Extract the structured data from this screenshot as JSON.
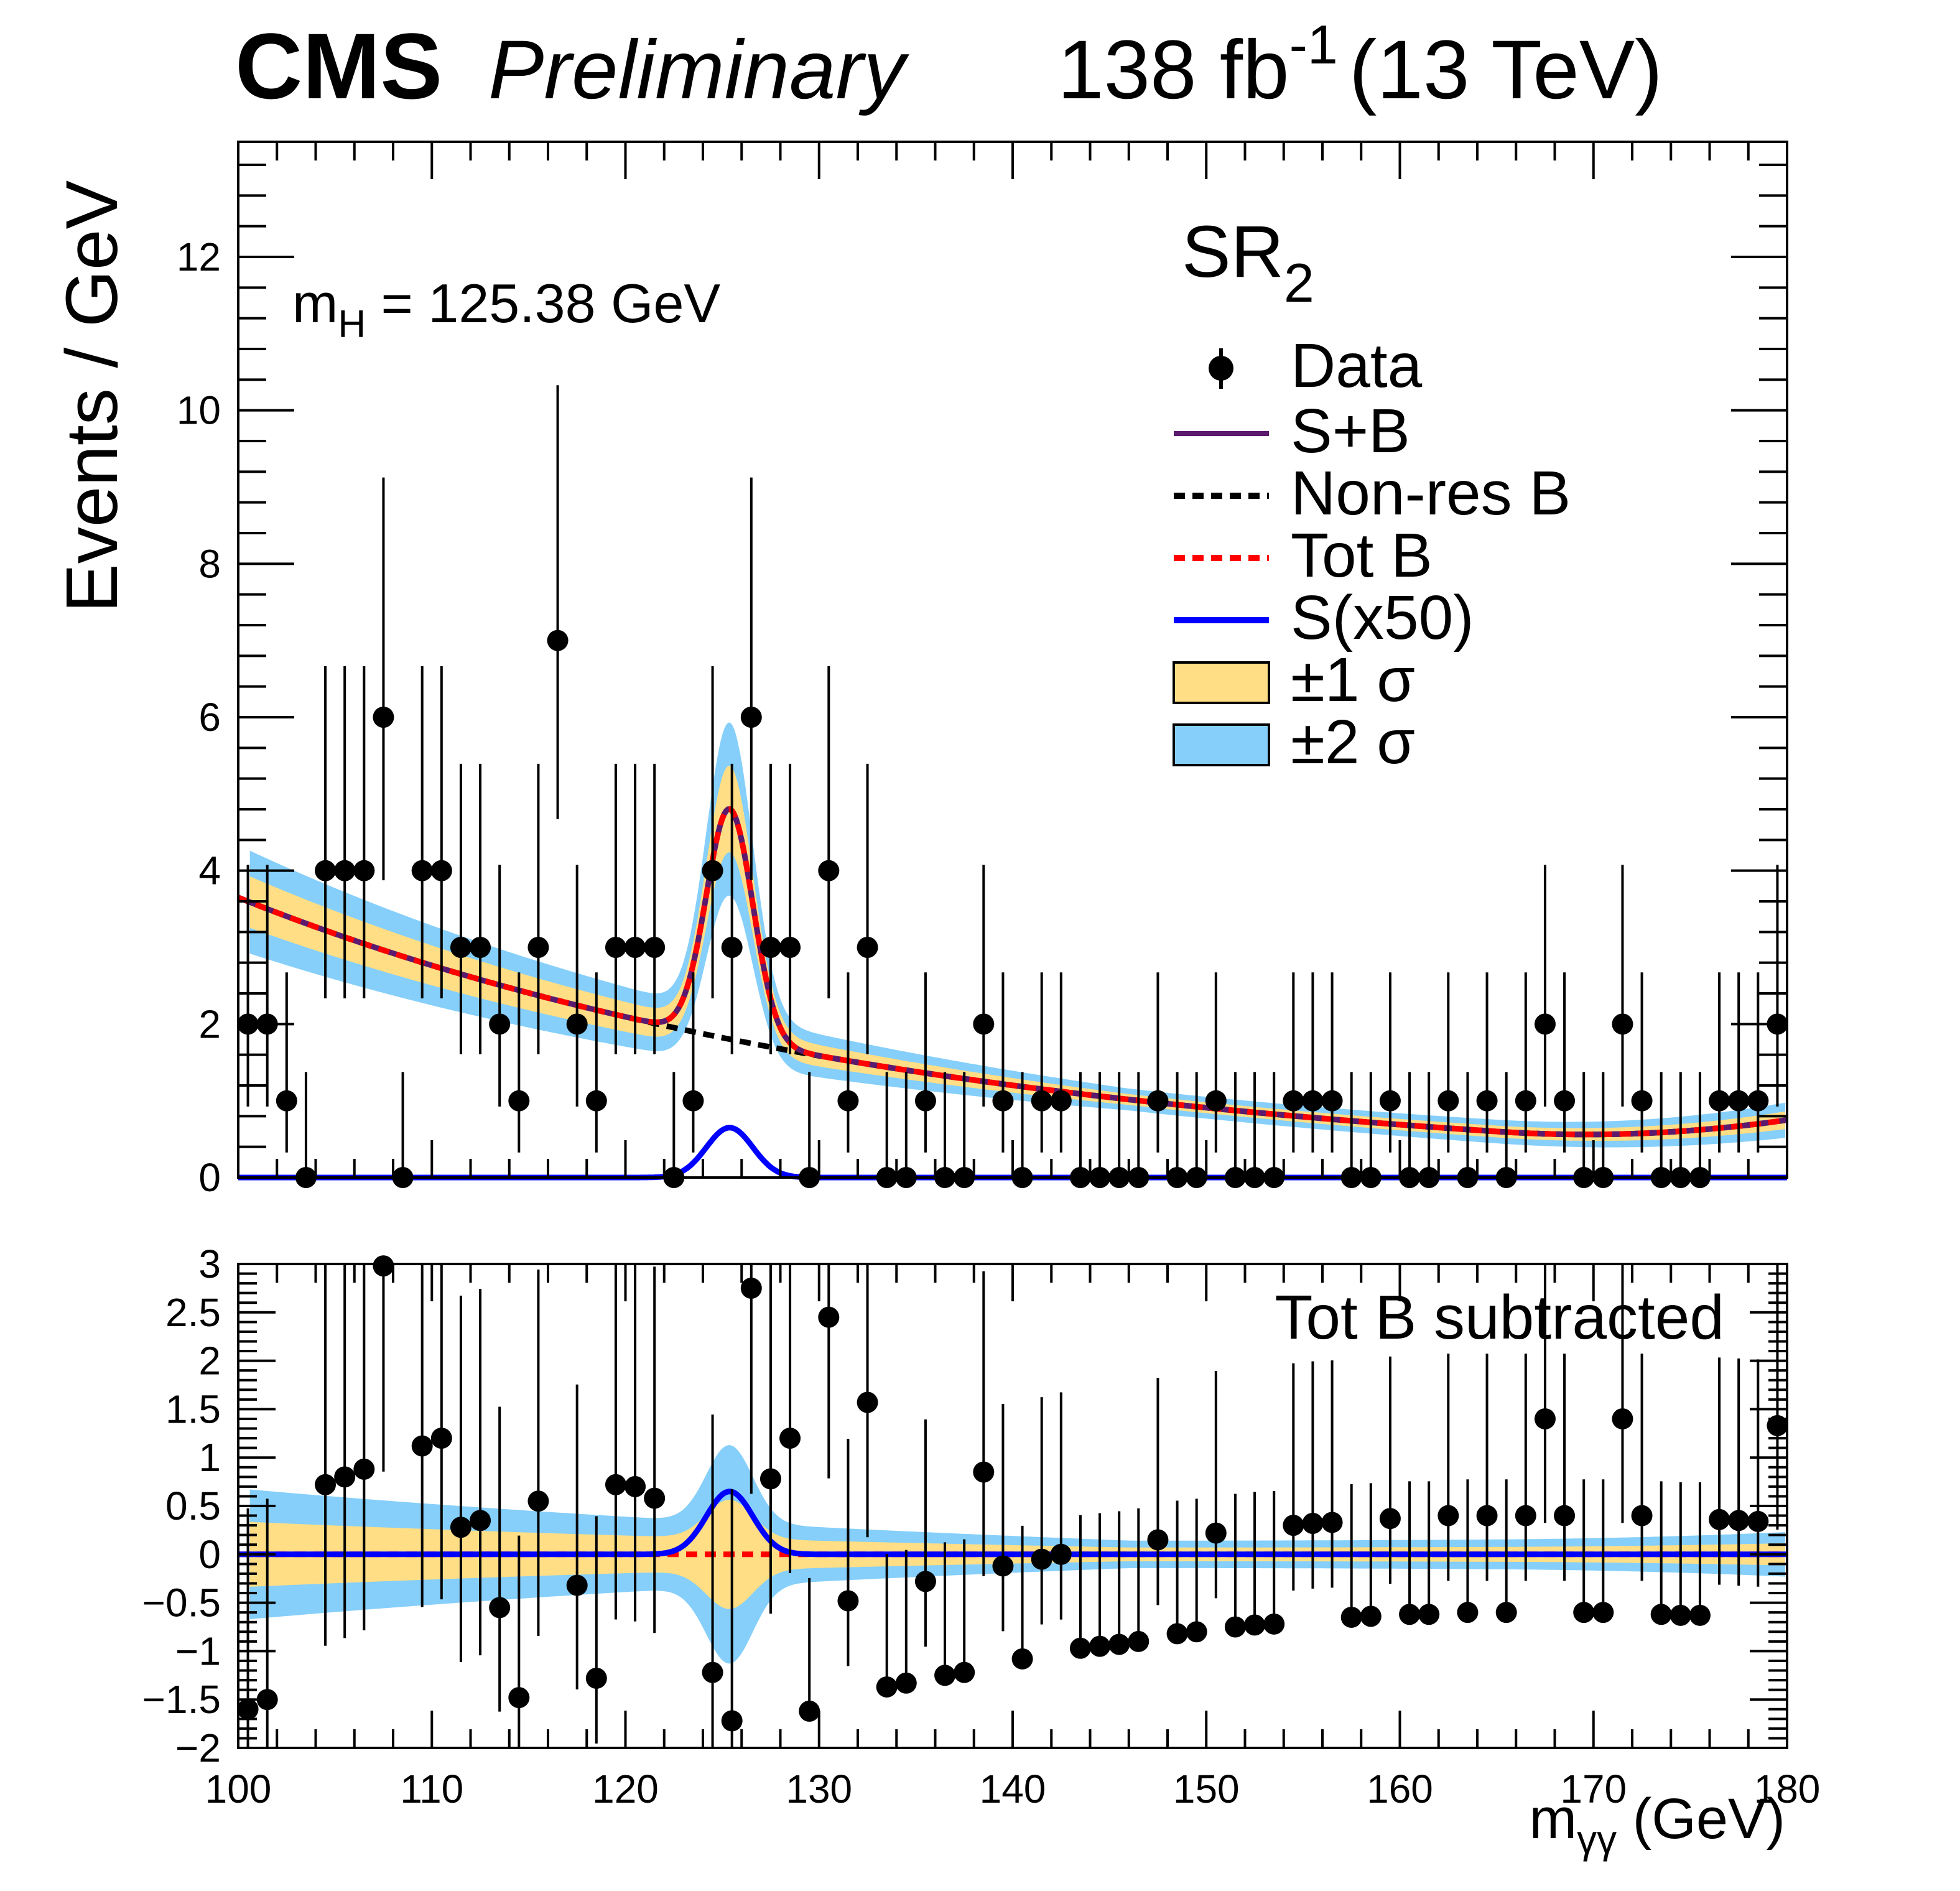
{
  "header": {
    "experiment": "CMS",
    "status": "Preliminary",
    "lumi_value": "138 fb",
    "lumi_exp": "-1",
    "energy": "(13 TeV)"
  },
  "annotations": {
    "mass_prefix": "m",
    "mass_sub": "H",
    "mass_suffix": " = 125.38 GeV",
    "region_main": "SR",
    "region_sub": "2",
    "ratio_label": "Tot B subtracted"
  },
  "axes": {
    "ylabel": "Events / GeV",
    "xlabel_prefix": "m",
    "xlabel_sub": "γγ",
    "xlabel_suffix": " (GeV)"
  },
  "legend": {
    "data": "Data",
    "sb": "S+B",
    "nonres": "Non-res B",
    "totb": "Tot B",
    "sig": "S(x50)",
    "one_sigma": "±1 σ",
    "two_sigma": "±2 σ"
  },
  "colors": {
    "one_sigma": "#ffde85",
    "two_sigma": "#85cffa",
    "sb": "#5c1a6e",
    "nonres": "#000000",
    "totb": "#ff0000",
    "signal": "#0000ff",
    "data": "#000000"
  },
  "chart_data": {
    "type": "scatter",
    "title": "SR2, mH = 125.38 GeV, 138 fb-1 (13 TeV)",
    "xlabel": "mγγ (GeV)",
    "ylabel": "Events / GeV",
    "xlim": [
      100,
      180
    ],
    "top_ylim": [
      0,
      13.5
    ],
    "ratio_ylim": [
      -2,
      3
    ],
    "x_ticks": [
      "100",
      "110",
      "120",
      "130",
      "140",
      "150",
      "160",
      "170",
      "180"
    ],
    "top_y_ticks": [
      "0",
      "2",
      "4",
      "6",
      "8",
      "10",
      "12"
    ],
    "ratio_y_ticks": [
      "−2",
      "−1.5",
      "−1",
      "−0.5",
      "0",
      "0.5",
      "1",
      "1.5",
      "2",
      "2.5",
      "3"
    ],
    "signal_model": {
      "mass": 125.38,
      "width": 1.2,
      "peak_tot": 3.0,
      "peak_plot": 0.65,
      "scale": "x50"
    },
    "background_model": {
      "at_100": 3.65,
      "at_165": 0.6,
      "at_180": 0.68
    },
    "data": [
      {
        "x": 100.5,
        "y": 2,
        "r": -1.6
      },
      {
        "x": 101.5,
        "y": 2,
        "r": -1.5
      },
      {
        "x": 102.5,
        "y": 1,
        "r": null
      },
      {
        "x": 103.5,
        "y": 0,
        "r": null
      },
      {
        "x": 104.5,
        "y": 4,
        "r": 0.72
      },
      {
        "x": 105.5,
        "y": 4,
        "r": 0.8
      },
      {
        "x": 106.5,
        "y": 4,
        "r": 0.88
      },
      {
        "x": 107.5,
        "y": 6,
        "r": 2.98
      },
      {
        "x": 108.5,
        "y": 0,
        "r": null
      },
      {
        "x": 109.5,
        "y": 4,
        "r": 1.12
      },
      {
        "x": 110.5,
        "y": 4,
        "r": 1.2
      },
      {
        "x": 111.5,
        "y": 3,
        "r": 0.28
      },
      {
        "x": 112.5,
        "y": 3,
        "r": 0.35
      },
      {
        "x": 113.5,
        "y": 2,
        "r": -0.55
      },
      {
        "x": 114.5,
        "y": 1,
        "r": -1.48
      },
      {
        "x": 115.5,
        "y": 3,
        "r": 0.55
      },
      {
        "x": 116.5,
        "y": 7,
        "r": null
      },
      {
        "x": 117.5,
        "y": 2,
        "r": -0.32
      },
      {
        "x": 118.5,
        "y": 1,
        "r": -1.28
      },
      {
        "x": 119.5,
        "y": 3,
        "r": 0.72
      },
      {
        "x": 120.5,
        "y": 3,
        "r": 0.7
      },
      {
        "x": 121.5,
        "y": 3,
        "r": 0.58
      },
      {
        "x": 122.5,
        "y": 0,
        "r": null
      },
      {
        "x": 123.5,
        "y": 1,
        "r": null
      },
      {
        "x": 124.5,
        "y": 4,
        "r": -1.22
      },
      {
        "x": 125.5,
        "y": 3,
        "r": -1.72
      },
      {
        "x": 126.5,
        "y": 6,
        "r": 2.75
      },
      {
        "x": 127.5,
        "y": 3,
        "r": 0.78
      },
      {
        "x": 128.5,
        "y": 3,
        "r": 1.2
      },
      {
        "x": 129.5,
        "y": 0,
        "r": -1.62
      },
      {
        "x": 130.5,
        "y": 4,
        "r": 2.45
      },
      {
        "x": 131.5,
        "y": 1,
        "r": -0.48
      },
      {
        "x": 132.5,
        "y": 3,
        "r": 1.57
      },
      {
        "x": 133.5,
        "y": 0,
        "r": -1.37
      },
      {
        "x": 134.5,
        "y": 0,
        "r": -1.33
      },
      {
        "x": 135.5,
        "y": 1,
        "r": -0.28
      },
      {
        "x": 136.5,
        "y": 0,
        "r": -1.25
      },
      {
        "x": 137.5,
        "y": 0,
        "r": -1.22
      },
      {
        "x": 138.5,
        "y": 2,
        "r": 0.85
      },
      {
        "x": 139.5,
        "y": 1,
        "r": -0.12
      },
      {
        "x": 140.5,
        "y": 0,
        "r": -1.08
      },
      {
        "x": 141.5,
        "y": 1,
        "r": -0.05
      },
      {
        "x": 142.5,
        "y": 1,
        "r": 0
      },
      {
        "x": 143.5,
        "y": 0,
        "r": -0.97
      },
      {
        "x": 144.5,
        "y": 0,
        "r": -0.95
      },
      {
        "x": 145.5,
        "y": 0,
        "r": -0.93
      },
      {
        "x": 146.5,
        "y": 0,
        "r": -0.9
      },
      {
        "x": 147.5,
        "y": 1,
        "r": 0.15
      },
      {
        "x": 148.5,
        "y": 0,
        "r": -0.82
      },
      {
        "x": 149.5,
        "y": 0,
        "r": -0.8
      },
      {
        "x": 150.5,
        "y": 1,
        "r": 0.22
      },
      {
        "x": 151.5,
        "y": 0,
        "r": -0.75
      },
      {
        "x": 152.5,
        "y": 0,
        "r": -0.73
      },
      {
        "x": 153.5,
        "y": 0,
        "r": -0.72
      },
      {
        "x": 154.5,
        "y": 1,
        "r": 0.3
      },
      {
        "x": 155.5,
        "y": 1,
        "r": 0.32
      },
      {
        "x": 156.5,
        "y": 1,
        "r": 0.33
      },
      {
        "x": 157.5,
        "y": 0,
        "r": -0.65
      },
      {
        "x": 158.5,
        "y": 0,
        "r": -0.64
      },
      {
        "x": 159.5,
        "y": 1,
        "r": 0.37
      },
      {
        "x": 160.5,
        "y": 0,
        "r": -0.62
      },
      {
        "x": 161.5,
        "y": 0,
        "r": -0.62
      },
      {
        "x": 162.5,
        "y": 1,
        "r": 0.4
      },
      {
        "x": 163.5,
        "y": 0,
        "r": -0.6
      },
      {
        "x": 164.5,
        "y": 1,
        "r": 0.4
      },
      {
        "x": 165.5,
        "y": 0,
        "r": -0.6
      },
      {
        "x": 166.5,
        "y": 1,
        "r": 0.4
      },
      {
        "x": 167.5,
        "y": 2,
        "r": 1.4
      },
      {
        "x": 168.5,
        "y": 1,
        "r": 0.4
      },
      {
        "x": 169.5,
        "y": 0,
        "r": -0.6
      },
      {
        "x": 170.5,
        "y": 0,
        "r": -0.6
      },
      {
        "x": 171.5,
        "y": 2,
        "r": 1.4
      },
      {
        "x": 172.5,
        "y": 1,
        "r": 0.4
      },
      {
        "x": 173.5,
        "y": 0,
        "r": -0.62
      },
      {
        "x": 174.5,
        "y": 0,
        "r": -0.63
      },
      {
        "x": 175.5,
        "y": 0,
        "r": -0.63
      },
      {
        "x": 176.5,
        "y": 1,
        "r": 0.36
      },
      {
        "x": 177.5,
        "y": 1,
        "r": 0.35
      },
      {
        "x": 178.5,
        "y": 1,
        "r": 0.34
      },
      {
        "x": 179.5,
        "y": 2,
        "r": 1.33
      }
    ]
  }
}
